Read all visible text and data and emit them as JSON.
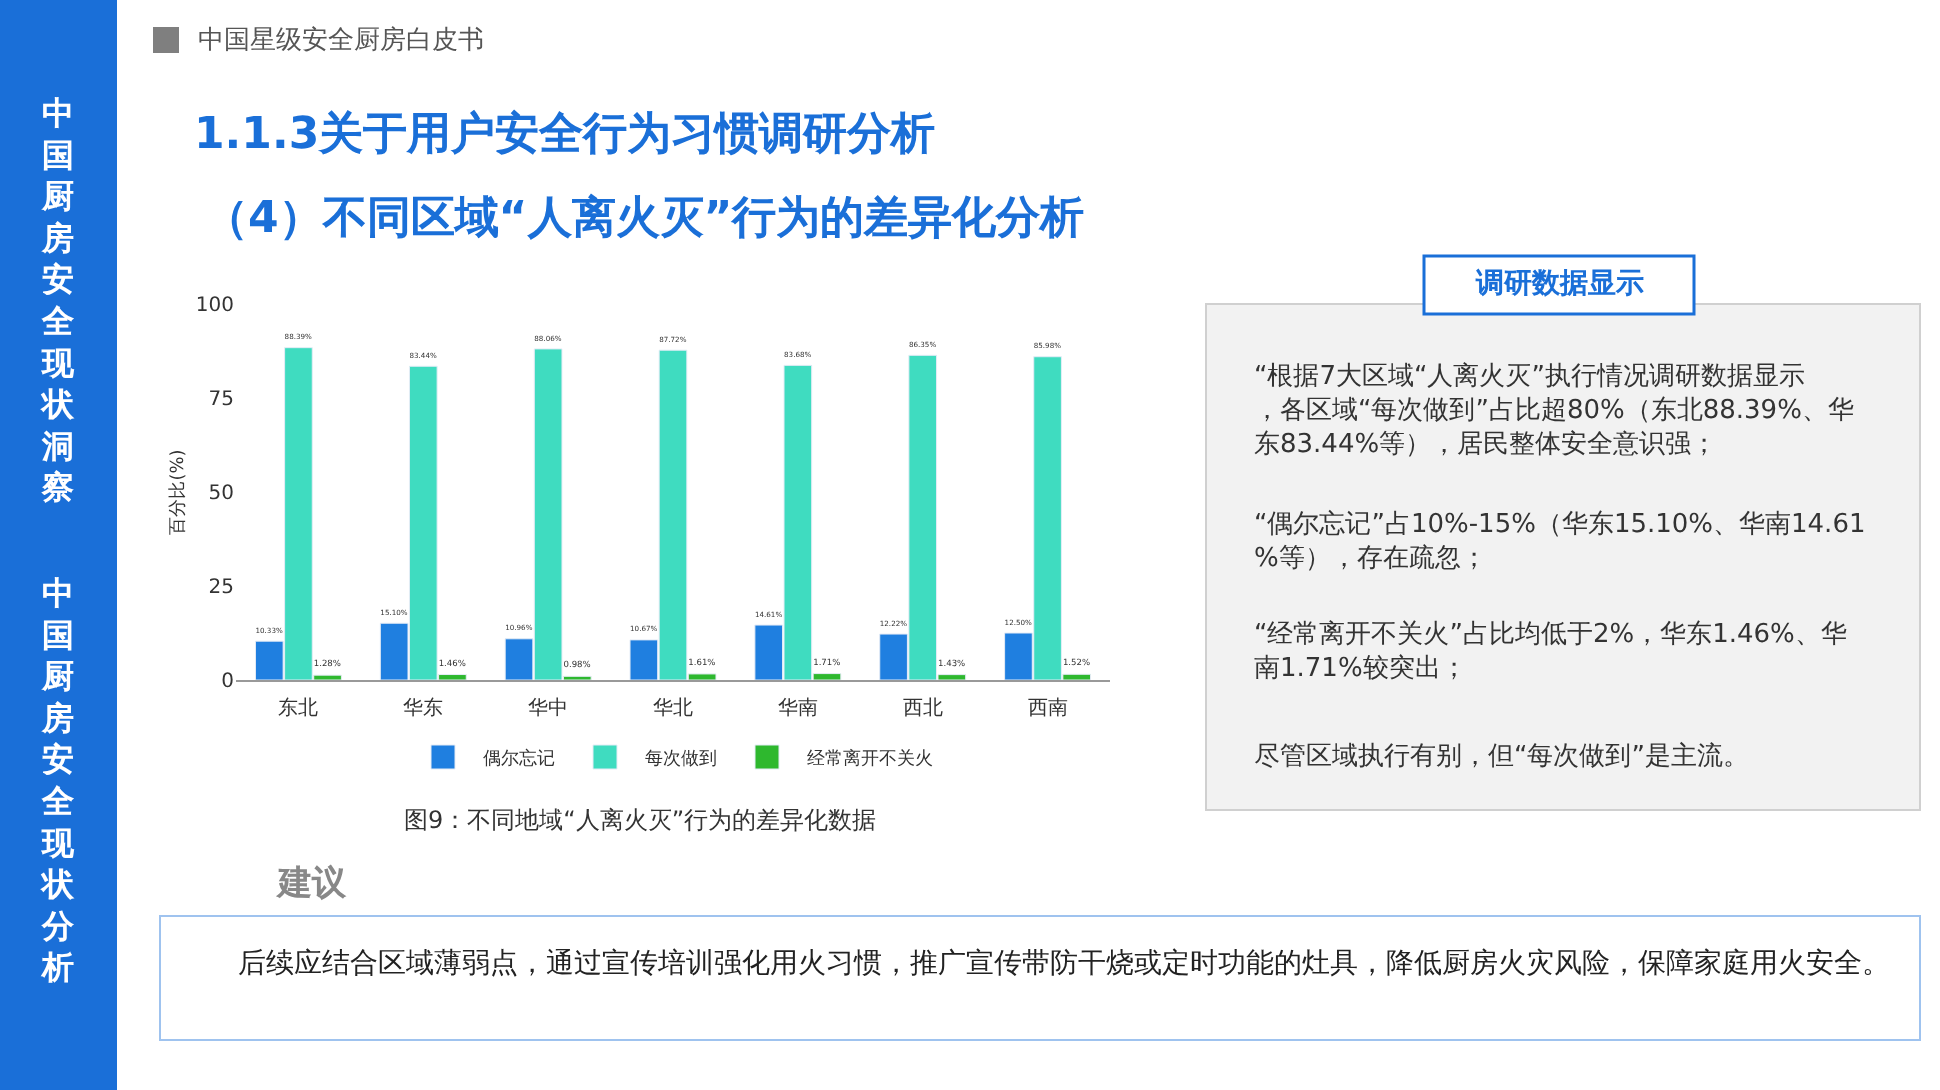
{
  "chart_data": [
    {
      "type": "bar",
      "categories": [
        "东北",
        "华东",
        "华中",
        "华北",
        "华南",
        "西北",
        "西南"
      ],
      "ylabel": "百分比(%)",
      "ylim": [
        0,
        100
      ],
      "yticks": [
        0,
        25,
        50,
        75,
        100
      ],
      "legend": "bottom",
      "series": [
        {
          "name": "偶尔忘记",
          "color": "#1f7fe0",
          "values": [
            10.33,
            15.1,
            10.96,
            10.67,
            14.61,
            12.22,
            12.5
          ],
          "value_labels": [
            "10.33%",
            "15.10%",
            "10.96%",
            "10.67%",
            "14.61%",
            "12.22%",
            "12.50%"
          ]
        },
        {
          "name": "每次做到",
          "color": "#3fdcc0",
          "values": [
            88.39,
            83.44,
            88.06,
            87.72,
            83.68,
            86.35,
            85.98
          ],
          "value_labels": [
            "88.39%",
            "83.44%",
            "88.06%",
            "87.72%",
            "83.68%",
            "86.35%",
            "85.98%"
          ]
        },
        {
          "name": "经常离开不关火",
          "color": "#2eb82e",
          "values": [
            1.28,
            1.46,
            0.98,
            1.61,
            1.71,
            1.43,
            1.52
          ],
          "value_labels": [
            "1.28%",
            "1.46%",
            "0.98%",
            "1.61%",
            "1.71%",
            "1.43%",
            "1.52%"
          ]
        }
      ],
      "annotations": [
        "图9：不同地域“人离火灭”行为的差异化数据"
      ]
    },
    {
      "type": "other",
      "title": "1.1.3关于用户安全行为习惯调研分析",
      "subtitle": "（4）不同区域“人离火灭”行为的差异化分析",
      "annotations": [
        "中国星级安全厨房白皮书",
        "中国厨房安全现状洞察",
        "中国厨房安全现状分析",
        "调研数据显示",
        "“根据7大区域“人离火灭”执行情况调研数据显示，各区域“每次做到”占比超80%（东北88.39%、华东83.44%等），居民整体安全意识强；",
        "“偶尔忘记”占10%-15%（华东15.10%、华南14.61%等），存在疏忽；",
        "“经常离开不关火”占比均低于2%，华东1.46%、华南1.71%较突出；",
        "尽管区域执行有别，但“每次做到”是主流。",
        "建议",
        "后续应结合区域薄弱点，通过宣传培训强化用火习惯，推广宣传带防干烧或定时功能的灶具，降低厨房火灾风险，保障家庭用火安全。"
      ]
    }
  ]
}
